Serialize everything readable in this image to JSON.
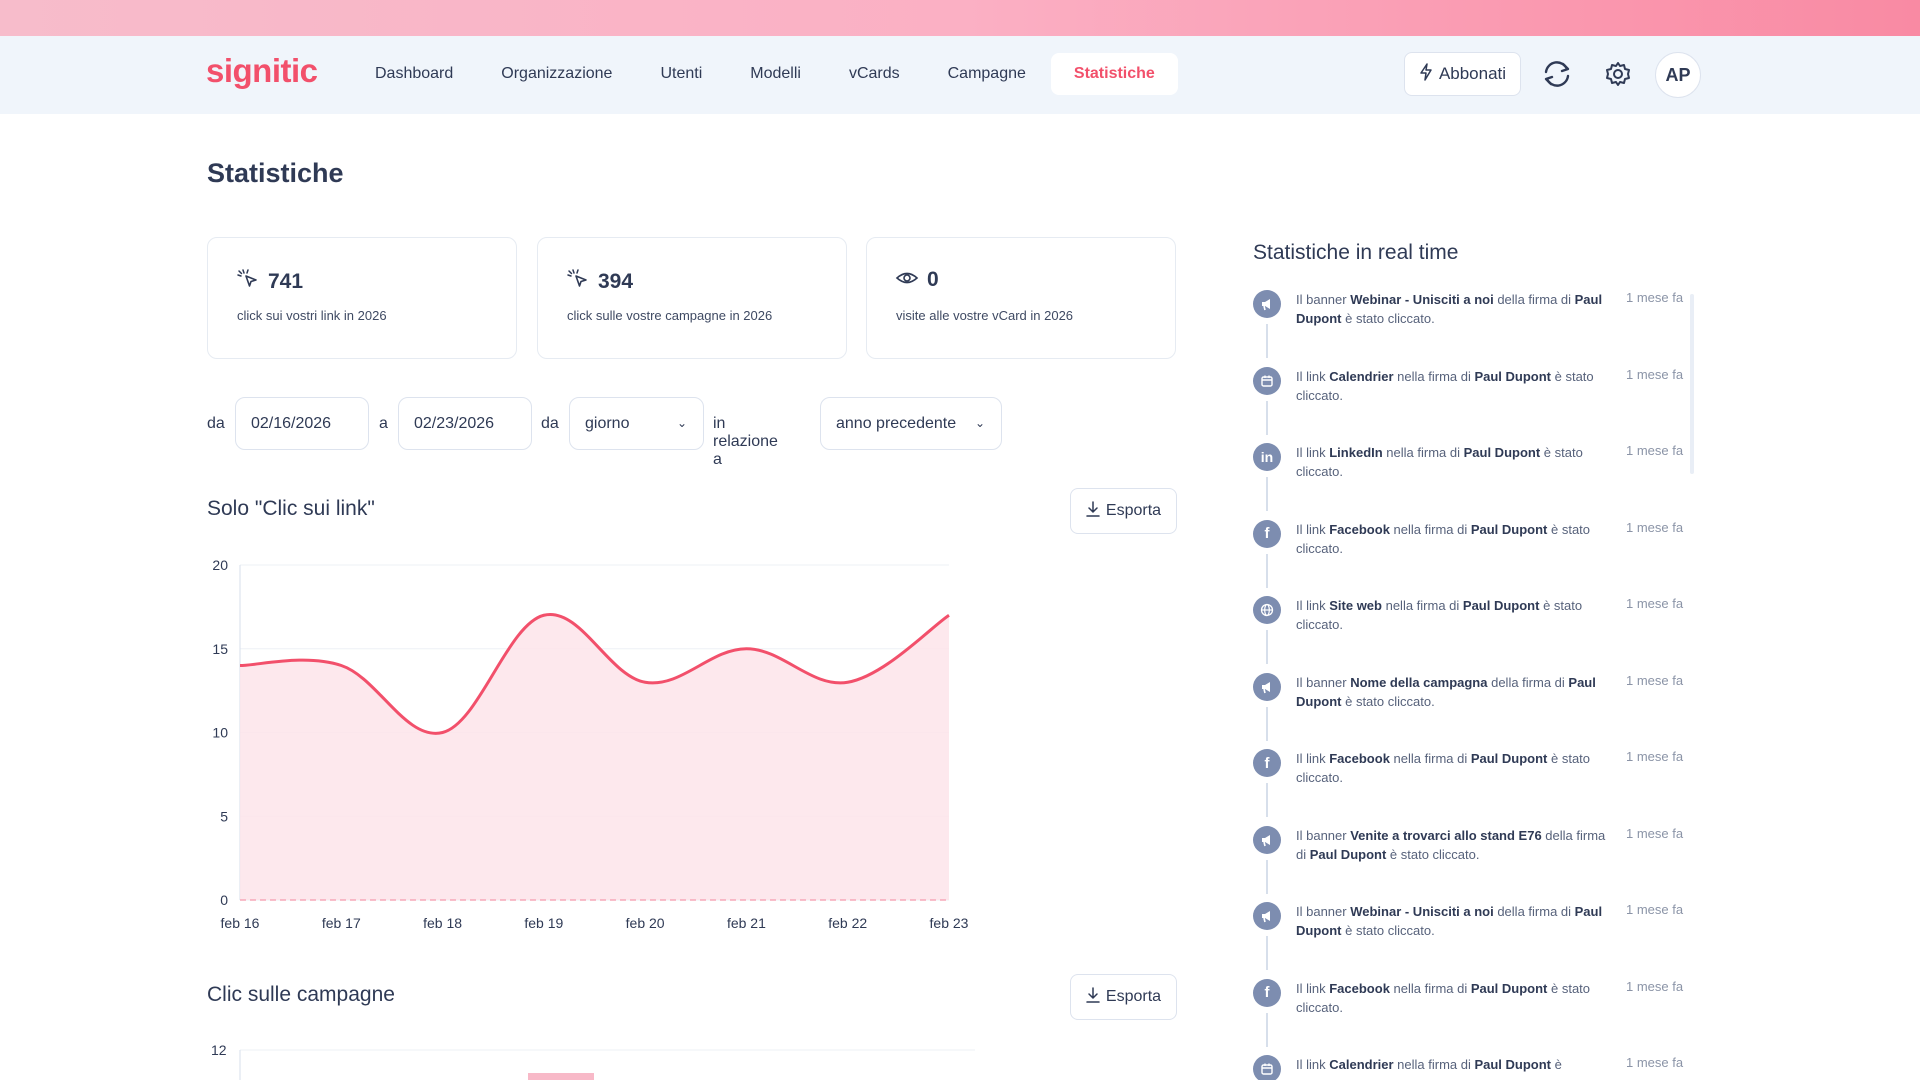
{
  "header": {
    "logo": "signitic",
    "nav": [
      "Dashboard",
      "Organizzazione",
      "Utenti",
      "Modelli",
      "vCards",
      "Campagne",
      "Statistiche"
    ],
    "active_nav": "Statistiche",
    "subscribe_label": "Abbonati",
    "avatar_initials": "AP"
  },
  "page": {
    "title": "Statistiche"
  },
  "stats": [
    {
      "icon": "click-icon",
      "value": "741",
      "label": "click sui vostri link in 2026"
    },
    {
      "icon": "click-icon",
      "value": "394",
      "label": "click sulle vostre campagne in 2026"
    },
    {
      "icon": "eye-icon",
      "value": "0",
      "label": "visite alle vostre vCard in 2026"
    }
  ],
  "filters": {
    "from_label": "da",
    "from_date": "02/16/2026",
    "to_label": "a",
    "to_date": "02/23/2026",
    "granularity_label": "da",
    "granularity": "giorno",
    "compare_label": "in relazione a",
    "compare": "anno precedente"
  },
  "sections": {
    "links_title": "Solo \"Clic sui link\"",
    "campaigns_title": "Clic sulle campagne",
    "export_label": "Esporta"
  },
  "chart_data": [
    {
      "type": "area",
      "title": "Solo \"Clic sui link\"",
      "categories": [
        "feb 16",
        "feb 17",
        "feb 18",
        "feb 19",
        "feb 20",
        "feb 21",
        "feb 22",
        "feb 23"
      ],
      "values": [
        14,
        14,
        10,
        17,
        13,
        15,
        13,
        17
      ],
      "ylim": [
        0,
        20
      ],
      "yticks": [
        0,
        5,
        10,
        15,
        20
      ],
      "color": "#f2506b",
      "fill": "#fde4ea",
      "grid": true
    },
    {
      "type": "bar",
      "title": "Clic sulle campagne",
      "yticks_visible": [
        12
      ],
      "color": "#f8b9c8"
    }
  ],
  "realtime": {
    "title": "Statistiche in real time",
    "items": [
      {
        "icon": "megaphone-icon",
        "pre": "Il banner ",
        "b1": "Webinar - Unisciti a noi",
        "mid": " della firma di ",
        "b2": "Paul Dupont",
        "post": " è stato cliccato.",
        "time": "1 mese fa"
      },
      {
        "icon": "calendar-icon",
        "pre": "Il link ",
        "b1": "Calendrier",
        "mid": " nella firma di ",
        "b2": "Paul Dupont",
        "post": " è stato cliccato.",
        "time": "1 mese fa"
      },
      {
        "icon": "linkedin-icon",
        "pre": "Il link ",
        "b1": "LinkedIn",
        "mid": " nella firma di ",
        "b2": "Paul Dupont",
        "post": " è stato cliccato.",
        "time": "1 mese fa"
      },
      {
        "icon": "facebook-icon",
        "pre": "Il link ",
        "b1": "Facebook",
        "mid": " nella firma di ",
        "b2": "Paul Dupont",
        "post": " è stato cliccato.",
        "time": "1 mese fa"
      },
      {
        "icon": "globe-icon",
        "pre": "Il link ",
        "b1": "Site web",
        "mid": " nella firma di ",
        "b2": "Paul Dupont",
        "post": " è stato cliccato.",
        "time": "1 mese fa"
      },
      {
        "icon": "megaphone-icon",
        "pre": "Il banner ",
        "b1": "Nome della campagna",
        "mid": " della firma di ",
        "b2": "Paul Dupont",
        "post": " è stato cliccato.",
        "time": "1 mese fa"
      },
      {
        "icon": "facebook-icon",
        "pre": "Il link ",
        "b1": "Facebook",
        "mid": " nella firma di ",
        "b2": "Paul Dupont",
        "post": " è stato cliccato.",
        "time": "1 mese fa"
      },
      {
        "icon": "megaphone-icon",
        "pre": "Il banner ",
        "b1": "Venite a trovarci allo stand E76",
        "mid": " della firma di ",
        "b2": "Paul Dupont",
        "post": " è stato cliccato.",
        "time": "1 mese fa"
      },
      {
        "icon": "megaphone-icon",
        "pre": "Il banner ",
        "b1": "Webinar - Unisciti a noi",
        "mid": " della firma di ",
        "b2": "Paul Dupont",
        "post": " è stato cliccato.",
        "time": "1 mese fa"
      },
      {
        "icon": "facebook-icon",
        "pre": "Il link ",
        "b1": "Facebook",
        "mid": " nella firma di ",
        "b2": "Paul Dupont",
        "post": " è stato cliccato.",
        "time": "1 mese fa"
      },
      {
        "icon": "calendar-icon",
        "pre": "Il link ",
        "b1": "Calendrier",
        "mid": " nella firma di ",
        "b2": "Paul Dupont",
        "post": " è",
        "time": "1 mese fa"
      }
    ]
  }
}
